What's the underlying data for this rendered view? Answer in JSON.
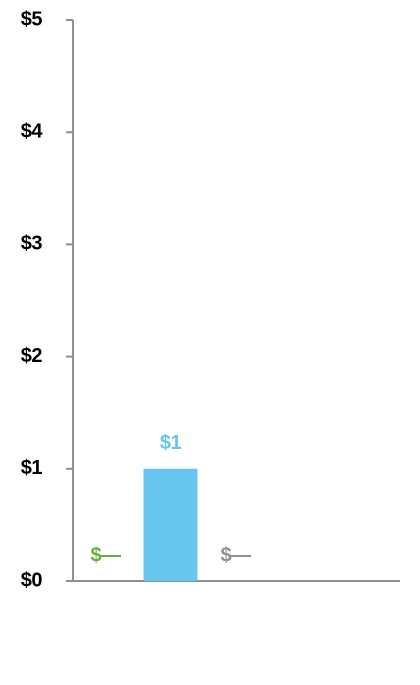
{
  "chart_data": {
    "type": "bar",
    "categories": [
      null,
      null,
      null
    ],
    "values": [
      0,
      1,
      0
    ],
    "value_labels": [
      "$—",
      "$1",
      "$—"
    ],
    "colors": [
      "#6aaf3d",
      "#66c6f0",
      "#8f8f8f"
    ],
    "ylim": [
      0,
      5
    ],
    "yticks": [
      {
        "value": 0,
        "label": "$0"
      },
      {
        "value": 1,
        "label": "$1"
      },
      {
        "value": 2,
        "label": "$2"
      },
      {
        "value": 3,
        "label": "$3"
      },
      {
        "value": 4,
        "label": "$4"
      },
      {
        "value": 5,
        "label": "$5"
      }
    ],
    "axis_color": "#8f8f8f"
  }
}
